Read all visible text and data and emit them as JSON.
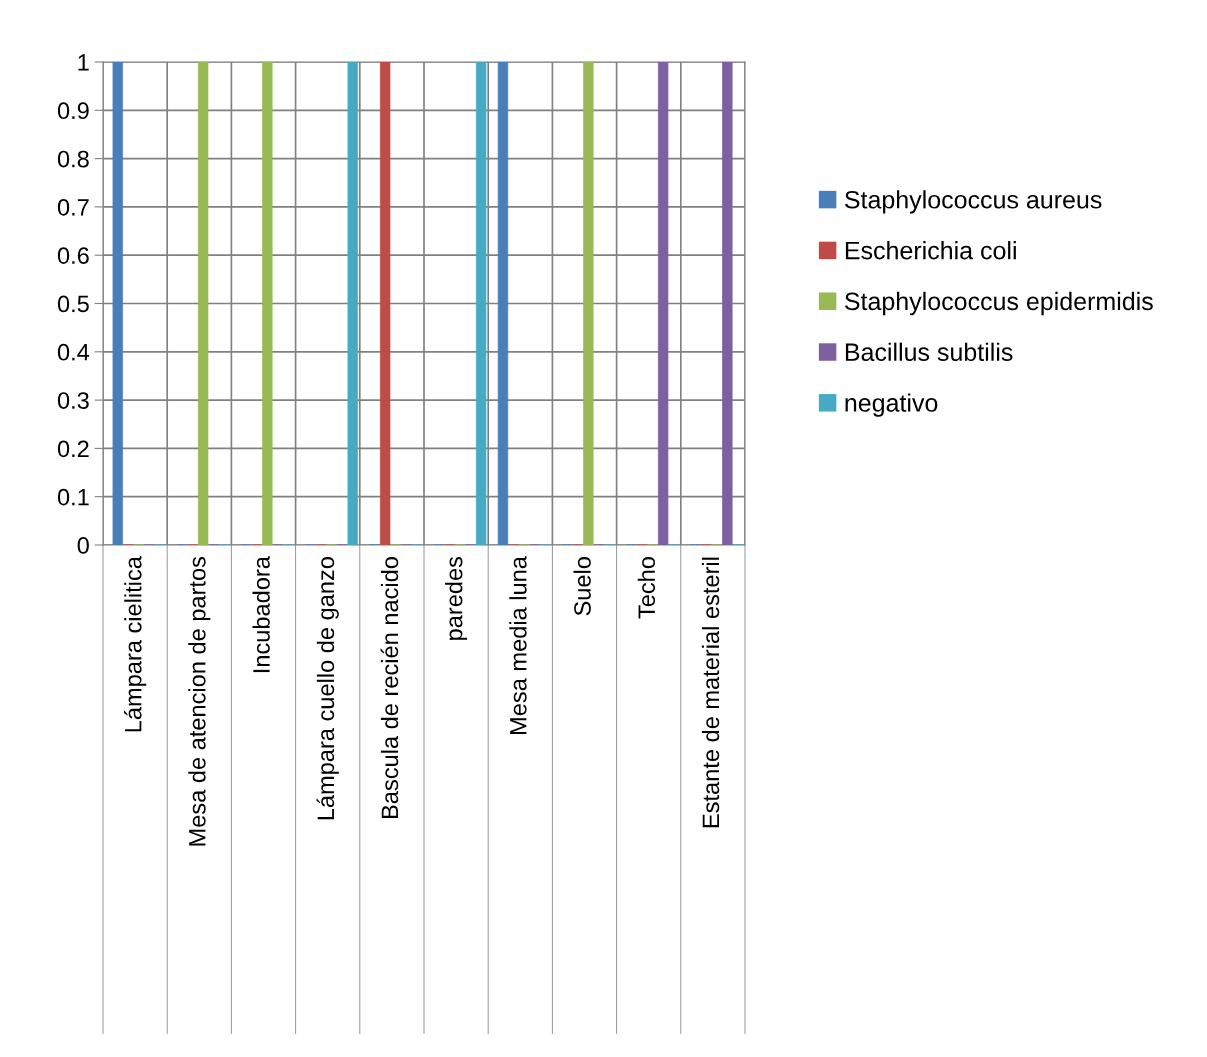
{
  "chart_data": {
    "type": "bar",
    "categories": [
      "Lámpara cielitica",
      "Mesa de atencion de partos",
      "Incubadora",
      "Lámpara cuello de ganzo",
      "Bascula de recién nacido",
      "paredes",
      "Mesa media luna",
      "Suelo",
      "Techo",
      "Estante de material esteril"
    ],
    "series": [
      {
        "name": "Staphylococcus aureus",
        "color": "#4a7ebb",
        "values": [
          1,
          0,
          0,
          0,
          0,
          0,
          1,
          0,
          0,
          0
        ]
      },
      {
        "name": "Escherichia coli",
        "color": "#be4b48",
        "values": [
          0,
          0,
          0,
          0,
          1,
          0,
          0,
          0,
          0,
          0
        ]
      },
      {
        "name": "Staphylococcus epidermidis",
        "color": "#98b954",
        "values": [
          0,
          1,
          1,
          0,
          0,
          0,
          0,
          1,
          0,
          0
        ]
      },
      {
        "name": "Bacillus subtilis",
        "color": "#7d60a0",
        "values": [
          0,
          0,
          0,
          0,
          0,
          0,
          0,
          0,
          1,
          1
        ]
      },
      {
        "name": "negativo",
        "color": "#46aac5",
        "values": [
          0,
          0,
          0,
          1,
          0,
          1,
          0,
          0,
          0,
          0
        ]
      }
    ],
    "ylim": [
      0,
      1
    ],
    "yticks": [
      0,
      0.1,
      0.2,
      0.3,
      0.4,
      0.5,
      0.6,
      0.7,
      0.8,
      0.9,
      1
    ],
    "grid": true,
    "legend": "right"
  }
}
